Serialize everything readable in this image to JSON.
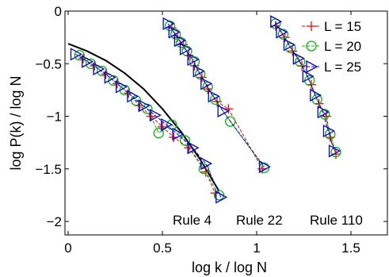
{
  "chart_data": {
    "type": "scatter",
    "xlabel": "log k / log N",
    "ylabel": "log P(k) / log N",
    "xlim": [
      0,
      1.7
    ],
    "ylim": [
      -2.1,
      0
    ],
    "xticks": [
      0,
      0.5,
      1,
      1.5
    ],
    "xtick_labels": [
      "0",
      "0.5",
      "1",
      "1.5"
    ],
    "yticks": [
      0,
      -0.5,
      -1,
      -1.5,
      -2
    ],
    "ytick_labels": [
      "0",
      "−0.5",
      "−1",
      "−1.5",
      "−2"
    ],
    "grid": false,
    "legend_position": "top-right",
    "annotations": [
      "Rule 4",
      "Rule 22",
      "Rule 110"
    ],
    "series": [
      {
        "name": "L = 15",
        "color": "#ff0000",
        "marker": "plus",
        "groups": [
          [
            [
              0.08,
              -0.45
            ],
            [
              0.14,
              -0.52
            ],
            [
              0.2,
              -0.6
            ],
            [
              0.26,
              -0.69
            ],
            [
              0.32,
              -0.78
            ],
            [
              0.38,
              -0.9
            ],
            [
              0.44,
              -1.0
            ],
            [
              0.5,
              -1.1
            ],
            [
              0.56,
              -1.2
            ],
            [
              0.64,
              -1.3
            ],
            [
              0.73,
              -1.53
            ],
            [
              0.78,
              -1.73
            ]
          ],
          [
            [
              0.55,
              -0.16
            ],
            [
              0.58,
              -0.25
            ],
            [
              0.61,
              -0.32
            ],
            [
              0.64,
              -0.42
            ],
            [
              0.67,
              -0.52
            ],
            [
              0.71,
              -0.63
            ],
            [
              0.74,
              -0.74
            ],
            [
              0.79,
              -0.86
            ],
            [
              0.85,
              -0.93
            ],
            [
              1.03,
              -1.5
            ]
          ],
          [
            [
              1.1,
              -0.14
            ],
            [
              1.15,
              -0.25
            ],
            [
              1.19,
              -0.38
            ],
            [
              1.24,
              -0.52
            ],
            [
              1.29,
              -0.7
            ],
            [
              1.33,
              -0.88
            ],
            [
              1.37,
              -1.0
            ],
            [
              1.39,
              -1.2
            ],
            [
              1.42,
              -1.36
            ]
          ]
        ]
      },
      {
        "name": "L = 20",
        "color": "#00bb00",
        "marker": "circle",
        "groups": [
          [
            [
              0.06,
              -0.42
            ],
            [
              0.12,
              -0.5
            ],
            [
              0.18,
              -0.57
            ],
            [
              0.24,
              -0.66
            ],
            [
              0.3,
              -0.75
            ],
            [
              0.36,
              -0.85
            ],
            [
              0.42,
              -0.93
            ],
            [
              0.48,
              -1.16
            ],
            [
              0.55,
              -1.08
            ],
            [
              0.62,
              -1.23
            ],
            [
              0.72,
              -1.5
            ],
            [
              0.8,
              -1.75
            ]
          ],
          [
            [
              0.54,
              -0.14
            ],
            [
              0.57,
              -0.22
            ],
            [
              0.6,
              -0.3
            ],
            [
              0.63,
              -0.38
            ],
            [
              0.67,
              -0.48
            ],
            [
              0.7,
              -0.6
            ],
            [
              0.74,
              -0.72
            ],
            [
              0.78,
              -0.84
            ],
            [
              0.86,
              -1.05
            ],
            [
              1.04,
              -1.49
            ]
          ],
          [
            [
              1.1,
              -0.12
            ],
            [
              1.14,
              -0.22
            ],
            [
              1.18,
              -0.35
            ],
            [
              1.23,
              -0.48
            ],
            [
              1.28,
              -0.66
            ],
            [
              1.32,
              -0.84
            ],
            [
              1.36,
              -0.98
            ],
            [
              1.39,
              -1.17
            ],
            [
              1.42,
              -1.34
            ]
          ]
        ]
      },
      {
        "name": "L = 25",
        "color": "#0000ee",
        "marker": "triangle-right",
        "groups": [
          [
            [
              0.04,
              -0.41
            ],
            [
              0.1,
              -0.48
            ],
            [
              0.16,
              -0.55
            ],
            [
              0.22,
              -0.63
            ],
            [
              0.28,
              -0.72
            ],
            [
              0.34,
              -0.81
            ],
            [
              0.4,
              -0.9
            ],
            [
              0.46,
              -0.99
            ],
            [
              0.52,
              -1.08
            ],
            [
              0.58,
              -1.17
            ],
            [
              0.66,
              -1.3
            ],
            [
              0.73,
              -1.45
            ],
            [
              0.81,
              -1.77
            ]
          ],
          [
            [
              0.53,
              -0.12
            ],
            [
              0.56,
              -0.2
            ],
            [
              0.59,
              -0.28
            ],
            [
              0.62,
              -0.36
            ],
            [
              0.66,
              -0.46
            ],
            [
              0.69,
              -0.57
            ],
            [
              0.73,
              -0.69
            ],
            [
              0.77,
              -0.81
            ],
            [
              0.82,
              -0.95
            ],
            [
              1.04,
              -1.48
            ]
          ],
          [
            [
              1.1,
              -0.1
            ],
            [
              1.13,
              -0.2
            ],
            [
              1.17,
              -0.32
            ],
            [
              1.22,
              -0.45
            ],
            [
              1.27,
              -0.62
            ],
            [
              1.31,
              -0.8
            ],
            [
              1.35,
              -0.96
            ],
            [
              1.38,
              -1.14
            ],
            [
              1.41,
              -1.33
            ]
          ]
        ]
      }
    ],
    "fit_curve": {
      "color": "#000000",
      "points": [
        [
          0,
          -0.31
        ],
        [
          0.1,
          -0.38
        ],
        [
          0.2,
          -0.47
        ],
        [
          0.3,
          -0.59
        ],
        [
          0.4,
          -0.74
        ],
        [
          0.5,
          -0.93
        ],
        [
          0.6,
          -1.15
        ],
        [
          0.7,
          -1.41
        ],
        [
          0.8,
          -1.71
        ]
      ]
    }
  }
}
